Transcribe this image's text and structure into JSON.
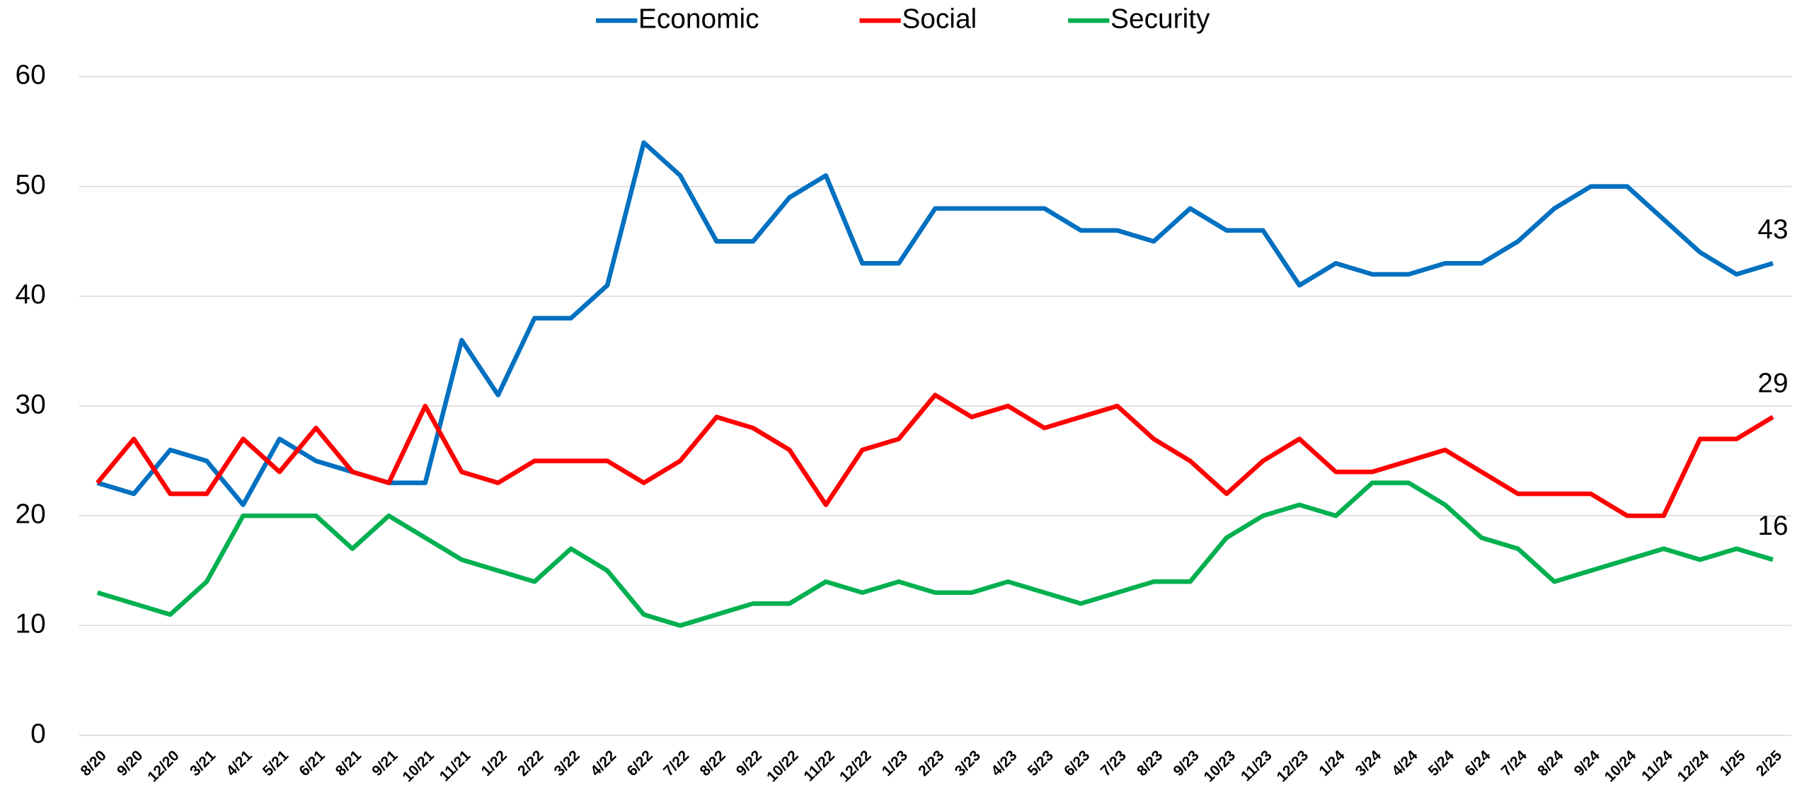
{
  "chart_data": {
    "type": "line",
    "categories": [
      "8/20",
      "9/20",
      "12/20",
      "3/21",
      "4/21",
      "5/21",
      "6/21",
      "8/21",
      "9/21",
      "10/21",
      "11/21",
      "1/22",
      "2/22",
      "3/22",
      "4/22",
      "6/22",
      "7/22",
      "8/22",
      "9/22",
      "10/22",
      "11/22",
      "12/22",
      "1/23",
      "2/23",
      "3/23",
      "4/23",
      "5/23",
      "6/23",
      "7/23",
      "8/23",
      "9/23",
      "10/23",
      "11/23",
      "12/23",
      "1/24",
      "3/24",
      "4/24",
      "5/24",
      "6/24",
      "7/24",
      "8/24",
      "9/24",
      "10/24",
      "11/24",
      "12/24",
      "1/25",
      "2/25"
    ],
    "series": [
      {
        "name": "Economic",
        "color": "#0070c0",
        "values": [
          23,
          22,
          26,
          25,
          21,
          27,
          25,
          24,
          23,
          23,
          36,
          31,
          38,
          38,
          41,
          54,
          51,
          45,
          45,
          49,
          51,
          43,
          43,
          48,
          48,
          48,
          48,
          46,
          46,
          45,
          48,
          46,
          46,
          41,
          43,
          42,
          42,
          43,
          43,
          45,
          48,
          50,
          50,
          47,
          44,
          42,
          43
        ]
      },
      {
        "name": "Social",
        "color": "#ff0000",
        "values": [
          23,
          27,
          22,
          22,
          27,
          24,
          28,
          24,
          23,
          30,
          24,
          23,
          25,
          25,
          25,
          23,
          25,
          29,
          28,
          26,
          21,
          26,
          27,
          31,
          29,
          30,
          28,
          29,
          30,
          27,
          25,
          22,
          25,
          27,
          24,
          24,
          25,
          26,
          24,
          22,
          22,
          22,
          20,
          20,
          27,
          27,
          29
        ]
      },
      {
        "name": "Security",
        "color": "#00b050",
        "values": [
          13,
          12,
          11,
          14,
          20,
          20,
          20,
          17,
          20,
          18,
          16,
          15,
          14,
          17,
          15,
          11,
          10,
          11,
          12,
          12,
          14,
          13,
          14,
          13,
          13,
          14,
          13,
          12,
          13,
          14,
          14,
          18,
          20,
          21,
          20,
          23,
          23,
          21,
          18,
          17,
          14,
          15,
          16,
          17,
          16,
          17,
          16
        ]
      }
    ],
    "ylim": [
      0,
      60
    ],
    "yticks": [
      0,
      10,
      20,
      30,
      40,
      50,
      60
    ],
    "grid": true,
    "legend": "top"
  }
}
